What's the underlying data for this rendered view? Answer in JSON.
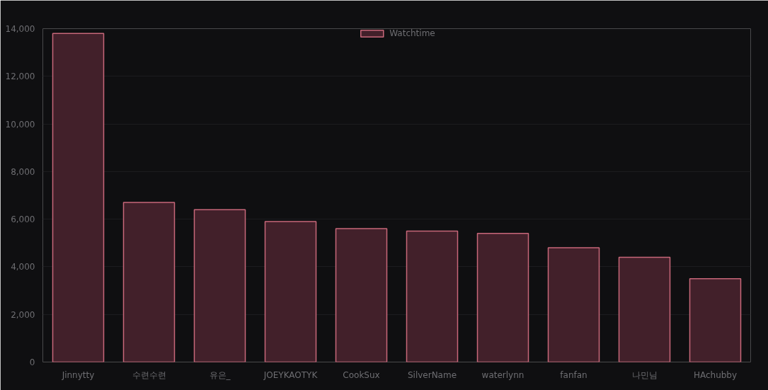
{
  "chart_data": {
    "type": "bar",
    "categories": [
      "Jinnytty",
      "수련수련",
      "유은_",
      "JOEYKAOTYK",
      "CookSux",
      "SilverName",
      "waterlynn",
      "fanfan",
      "나민님",
      "HAchubby"
    ],
    "series": [
      {
        "name": "Watchtime",
        "color": "#42202a",
        "values": [
          13800,
          6700,
          6400,
          5900,
          5600,
          5500,
          5400,
          4800,
          4400,
          3500
        ]
      }
    ],
    "ylim": [
      0,
      14000
    ],
    "yticks": [
      {
        "value": 0,
        "label": "0"
      },
      {
        "value": 2000,
        "label": "2,000"
      },
      {
        "value": 4000,
        "label": "4,000"
      },
      {
        "value": 6000,
        "label": "6,000"
      },
      {
        "value": 8000,
        "label": "8,000"
      },
      {
        "value": 10000,
        "label": "10,000"
      },
      {
        "value": 12000,
        "label": "12,000"
      },
      {
        "value": 14000,
        "label": "14,000"
      }
    ],
    "grid": true,
    "legend": "top"
  }
}
